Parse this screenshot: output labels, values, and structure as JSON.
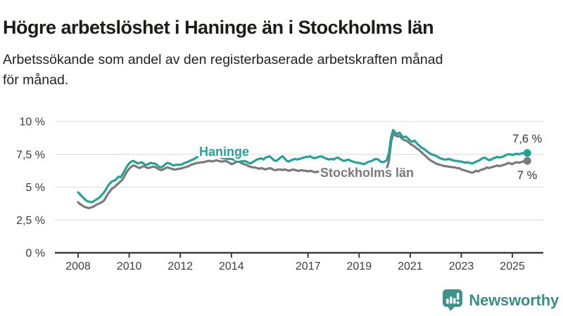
{
  "footer": {
    "brand": "Newsworthy"
  },
  "colors": {
    "haninge": "#21a398",
    "stockholm": "#7a7a7a",
    "axis_text": "#3d3d3d",
    "grid": "#e3e3e3",
    "baseline": "#3d3d3d",
    "title_text": "#1c1c1a",
    "brand_icon": "#3d938b",
    "brand_text": "#3a8e88"
  },
  "chart_data": {
    "type": "line",
    "title": "Högre arbetslöshet i Haninge än i Stockholms län",
    "subtitle_lines": [
      "Arbetssökande som andel av den registerbaserade arbetskraften månad",
      "för månad."
    ],
    "frequency": "monthly",
    "x_start": {
      "year": 2008,
      "month": 1
    },
    "x_end": {
      "year": 2025,
      "month": 8
    },
    "x_axis": {
      "tick_labels": [
        "2008",
        "2010",
        "2012",
        "2014",
        "2017",
        "2019",
        "2021",
        "2023",
        "2025"
      ]
    },
    "y_axis": {
      "tick_values": [
        0,
        2.5,
        5,
        7.5,
        10
      ],
      "tick_labels": [
        "0 %",
        "2,5 %",
        "5 %",
        "7,5 %",
        "10 %"
      ],
      "range": [
        0,
        10
      ]
    },
    "grid": true,
    "legend_position": "inline-labels",
    "series": [
      {
        "name": "Stockholms län",
        "color": "#7a7a7a",
        "end_label": "7 %",
        "values": [
          3.85,
          3.7,
          3.6,
          3.5,
          3.45,
          3.4,
          3.45,
          3.5,
          3.6,
          3.7,
          3.75,
          3.85,
          3.95,
          4.2,
          4.5,
          4.7,
          4.9,
          5.0,
          5.15,
          5.3,
          5.45,
          5.6,
          5.9,
          6.2,
          6.4,
          6.55,
          6.65,
          6.6,
          6.5,
          6.45,
          6.55,
          6.6,
          6.5,
          6.45,
          6.5,
          6.55,
          6.55,
          6.45,
          6.35,
          6.3,
          6.35,
          6.45,
          6.5,
          6.45,
          6.4,
          6.35,
          6.35,
          6.4,
          6.4,
          6.45,
          6.5,
          6.55,
          6.6,
          6.7,
          6.75,
          6.8,
          6.85,
          6.85,
          6.9,
          6.9,
          6.95,
          7.0,
          7.0,
          6.95,
          7.0,
          7.05,
          7.0,
          6.95,
          6.95,
          7.0,
          6.95,
          6.85,
          6.75,
          6.8,
          6.9,
          6.95,
          6.9,
          6.8,
          6.75,
          6.7,
          6.6,
          6.55,
          6.5,
          6.5,
          6.45,
          6.4,
          6.45,
          6.4,
          6.35,
          6.4,
          6.45,
          6.4,
          6.3,
          6.3,
          6.35,
          6.35,
          6.3,
          6.35,
          6.3,
          6.25,
          6.3,
          6.35,
          6.3,
          6.25,
          6.25,
          6.3,
          6.25,
          6.25,
          6.2,
          6.25,
          6.2,
          6.15,
          6.15,
          6.2,
          6.15,
          6.1,
          6.1,
          6.15,
          6.1,
          6.1,
          6.1,
          6.05,
          6.1,
          6.05,
          6.0,
          6.05,
          6.1,
          6.05,
          6.0,
          6.0,
          6.05,
          6.0,
          6.05,
          6.0,
          6.05,
          6.1,
          6.15,
          6.2,
          6.3,
          6.35,
          6.4,
          6.35,
          6.3,
          6.25,
          6.3,
          6.4,
          7.0,
          8.4,
          9.05,
          8.95,
          8.85,
          8.9,
          8.7,
          8.6,
          8.55,
          8.45,
          8.3,
          8.2,
          8.1,
          7.95,
          7.85,
          7.7,
          7.55,
          7.4,
          7.25,
          7.1,
          7.0,
          6.9,
          6.8,
          6.75,
          6.7,
          6.65,
          6.6,
          6.6,
          6.55,
          6.55,
          6.5,
          6.5,
          6.45,
          6.45,
          6.35,
          6.3,
          6.25,
          6.2,
          6.15,
          6.1,
          6.15,
          6.25,
          6.2,
          6.3,
          6.35,
          6.4,
          6.5,
          6.45,
          6.5,
          6.55,
          6.6,
          6.65,
          6.6,
          6.65,
          6.7,
          6.75,
          6.85,
          6.8,
          6.75,
          6.85,
          6.9,
          6.85,
          6.9,
          6.95,
          6.95,
          7.0
        ]
      },
      {
        "name": "Haninge",
        "color": "#21a398",
        "end_label": "7,6 %",
        "values": [
          4.6,
          4.45,
          4.25,
          4.1,
          3.95,
          3.9,
          3.85,
          3.9,
          4.0,
          4.1,
          4.2,
          4.4,
          4.55,
          4.8,
          5.1,
          5.3,
          5.45,
          5.5,
          5.6,
          5.8,
          5.75,
          6.0,
          6.3,
          6.6,
          6.8,
          6.95,
          7.0,
          6.9,
          6.8,
          6.85,
          6.9,
          6.75,
          6.7,
          6.75,
          6.85,
          6.8,
          6.8,
          6.7,
          6.55,
          6.5,
          6.6,
          6.75,
          6.85,
          6.8,
          6.7,
          6.65,
          6.7,
          6.7,
          6.7,
          6.75,
          6.85,
          6.9,
          6.95,
          7.05,
          7.1,
          7.2,
          7.3,
          7.35,
          7.45,
          7.55,
          7.6,
          7.55,
          7.45,
          7.4,
          7.35,
          7.3,
          7.35,
          7.25,
          7.2,
          7.2,
          7.15,
          7.15,
          7.15,
          7.1,
          7.05,
          7.0,
          7.0,
          6.95,
          7.0,
          6.95,
          6.85,
          6.8,
          6.9,
          7.0,
          7.1,
          7.15,
          7.2,
          7.1,
          7.25,
          7.3,
          7.35,
          7.2,
          7.05,
          7.0,
          7.1,
          7.25,
          7.35,
          7.2,
          7.0,
          6.95,
          7.05,
          7.1,
          7.15,
          7.1,
          7.15,
          7.2,
          7.25,
          7.3,
          7.3,
          7.35,
          7.25,
          7.2,
          7.25,
          7.3,
          7.35,
          7.3,
          7.2,
          7.15,
          7.1,
          7.15,
          7.1,
          7.2,
          7.25,
          7.15,
          7.05,
          7.0,
          7.05,
          7.1,
          7.0,
          6.95,
          6.9,
          6.85,
          6.85,
          6.8,
          6.75,
          6.8,
          6.9,
          6.95,
          7.0,
          7.1,
          7.15,
          7.1,
          6.95,
          6.9,
          6.95,
          7.05,
          7.6,
          8.8,
          9.35,
          9.15,
          9.05,
          9.15,
          8.9,
          8.8,
          8.85,
          8.7,
          8.55,
          8.45,
          8.55,
          8.35,
          8.2,
          8.05,
          7.95,
          7.85,
          7.7,
          7.6,
          7.5,
          7.45,
          7.4,
          7.3,
          7.2,
          7.15,
          7.1,
          7.1,
          7.15,
          7.1,
          7.05,
          7.0,
          7.0,
          6.95,
          6.95,
          6.9,
          6.85,
          6.9,
          6.85,
          6.8,
          6.85,
          6.95,
          7.0,
          7.1,
          7.2,
          7.25,
          7.15,
          7.05,
          7.1,
          7.2,
          7.25,
          7.3,
          7.25,
          7.3,
          7.35,
          7.45,
          7.5,
          7.5,
          7.45,
          7.5,
          7.55,
          7.5,
          7.55,
          7.6,
          7.55,
          7.6
        ]
      }
    ]
  }
}
